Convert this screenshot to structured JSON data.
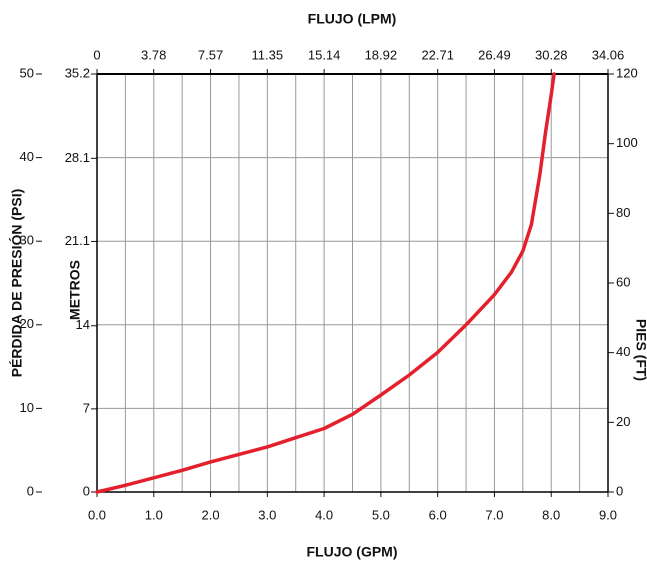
{
  "chart_data": {
    "type": "line",
    "x_label": "FLUJO (GPM)",
    "x2_label": "FLUJO (LPM)",
    "y_label": "PÉRDIDA DE PRESIÓN (PSI)",
    "y_metros_label": "METROS",
    "y2_label": "PIES (FT)",
    "x": [
      0,
      0.5,
      1,
      1.5,
      2,
      2.5,
      3,
      3.5,
      4,
      4.5,
      5,
      5.5,
      6,
      6.5,
      7,
      7.3,
      7.5,
      7.65,
      7.8,
      7.9,
      8.0,
      8.05
    ],
    "values": [
      0,
      0.8,
      1.7,
      2.6,
      3.6,
      4.5,
      5.4,
      6.5,
      7.6,
      9.3,
      11.6,
      14,
      16.7,
      20,
      23.6,
      26.3,
      28.8,
      32,
      38,
      43,
      47.5,
      50
    ],
    "color": "#e3202c",
    "xlim": [
      0,
      9
    ],
    "xticks": [
      {
        "value": 0,
        "label": "0.0"
      },
      {
        "value": 1,
        "label": "1.0"
      },
      {
        "value": 2,
        "label": "2.0"
      },
      {
        "value": 3,
        "label": "3.0"
      },
      {
        "value": 4,
        "label": "4.0"
      },
      {
        "value": 5,
        "label": "5.0"
      },
      {
        "value": 6,
        "label": "6.0"
      },
      {
        "value": 7,
        "label": "7.0"
      },
      {
        "value": 8,
        "label": "8.0"
      },
      {
        "value": 9,
        "label": "9.0"
      }
    ],
    "x2lim": [
      0,
      34.06
    ],
    "x2ticks": [
      0,
      3.78,
      7.57,
      11.35,
      15.14,
      18.92,
      22.71,
      26.49,
      30.28,
      34.06
    ],
    "ylim": [
      0,
      50
    ],
    "yticks": [
      0,
      10,
      20,
      30,
      40,
      50
    ],
    "y_metros_lim": [
      0,
      35.2
    ],
    "y_metros_ticks": [
      0,
      7,
      14,
      21.1,
      28.1,
      35.2
    ],
    "y2lim": [
      0,
      120
    ],
    "y2ticks": [
      0,
      20,
      40,
      60,
      80,
      100,
      120
    ],
    "grid": true
  }
}
